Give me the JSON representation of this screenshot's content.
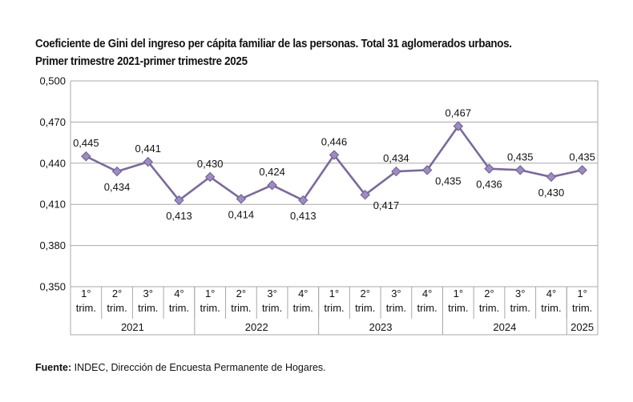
{
  "chart_data": {
    "type": "line",
    "title": "Coeficiente de Gini del ingreso per cápita familiar de las personas. Total 31 aglomerados urbanos.",
    "subtitle": "Primer trimestre 2021-primer trimestre 2025",
    "ylim": [
      0.35,
      0.5
    ],
    "yticks": [
      "0,500",
      "0,470",
      "0,440",
      "0,410",
      "0,380",
      "0,350"
    ],
    "ytick_values": [
      0.5,
      0.47,
      0.44,
      0.41,
      0.38,
      0.35
    ],
    "grid": true,
    "quarter_labels": [
      [
        "1°",
        "trim."
      ],
      [
        "2°",
        "trim."
      ],
      [
        "3°",
        "trim."
      ],
      [
        "4°",
        "trim."
      ],
      [
        "1°",
        "trim."
      ],
      [
        "2°",
        "trim."
      ],
      [
        "3°",
        "trim."
      ],
      [
        "4°",
        "trim."
      ],
      [
        "1°",
        "trim."
      ],
      [
        "2°",
        "trim."
      ],
      [
        "3°",
        "trim."
      ],
      [
        "4°",
        "trim."
      ],
      [
        "1°",
        "trim."
      ],
      [
        "2°",
        "trim."
      ],
      [
        "3°",
        "trim."
      ],
      [
        "4°",
        "trim."
      ],
      [
        "1°",
        "trim."
      ]
    ],
    "years": [
      {
        "label": "2021",
        "count": 4
      },
      {
        "label": "2022",
        "count": 4
      },
      {
        "label": "2023",
        "count": 4
      },
      {
        "label": "2024",
        "count": 4
      },
      {
        "label": "2025",
        "count": 1
      }
    ],
    "values": [
      0.445,
      0.434,
      0.441,
      0.413,
      0.43,
      0.414,
      0.424,
      0.413,
      0.446,
      0.417,
      0.434,
      0.435,
      0.467,
      0.436,
      0.435,
      0.43,
      0.435
    ],
    "value_labels": [
      "0,445",
      "0,434",
      "0,441",
      "0,413",
      "0,430",
      "0,414",
      "0,424",
      "0,413",
      "0,446",
      "0,417",
      "0,434",
      "0,435",
      "0,467",
      "0,436",
      "0,435",
      "0,430",
      "0,435"
    ],
    "label_positions": [
      "above",
      "below",
      "above",
      "below",
      "above",
      "below",
      "above",
      "below",
      "above",
      "below-right",
      "above",
      "below-right",
      "above",
      "below",
      "above",
      "below",
      "above"
    ],
    "line_color": "#7b6a9b",
    "marker_color": "#9c8cc0",
    "marker_stroke": "#6c5b8c"
  },
  "source": {
    "label": "Fuente:",
    "text": " INDEC, Dirección de Encuesta Permanente de Hogares."
  }
}
